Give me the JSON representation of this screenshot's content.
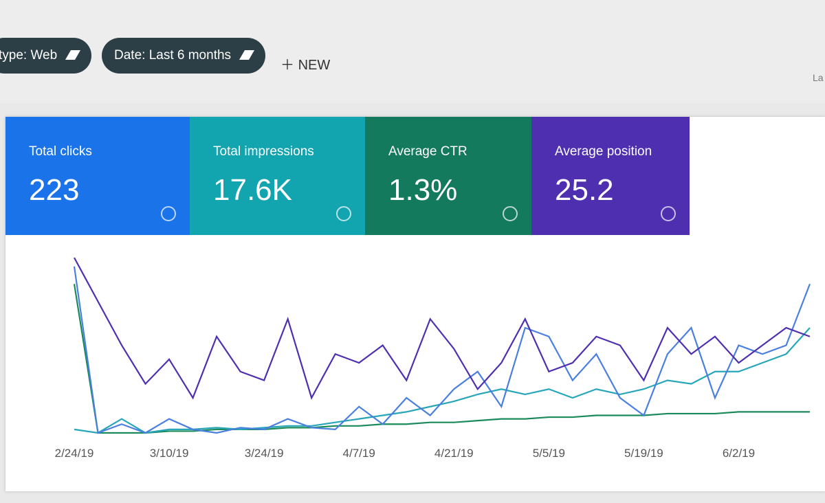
{
  "toolbar": {
    "chips": [
      "type: Web",
      "Date: Last 6 months"
    ],
    "new_button": "NEW",
    "corner_text": "La"
  },
  "cards": [
    {
      "label": "Total clicks",
      "value": "223",
      "color": "#1a73e8"
    },
    {
      "label": "Total impressions",
      "value": "17.6K",
      "color": "#12a4af"
    },
    {
      "label": "Average CTR",
      "value": "1.3%",
      "color": "#137a5e"
    },
    {
      "label": "Average position",
      "value": "25.2",
      "color": "#4e2fb0"
    }
  ],
  "chart_data": {
    "type": "line",
    "categories": [
      "2/24/19",
      null,
      null,
      null,
      "3/10/19",
      null,
      null,
      null,
      "3/24/19",
      null,
      null,
      null,
      "4/7/19",
      null,
      null,
      null,
      "4/21/19",
      null,
      null,
      null,
      "5/5/19",
      null,
      null,
      null,
      "5/19/19",
      null,
      null,
      null,
      "6/2/19",
      null,
      null,
      null
    ],
    "series": [
      {
        "name": "Average position",
        "color": "#4e2fb0",
        "values": [
          100,
          75,
          50,
          28,
          42,
          20,
          55,
          35,
          30,
          65,
          20,
          45,
          40,
          50,
          30,
          65,
          48,
          25,
          40,
          65,
          35,
          40,
          55,
          50,
          30,
          60,
          45,
          55,
          40,
          50,
          60,
          55
        ]
      },
      {
        "name": "Total clicks",
        "color": "#4a7fe0",
        "values": [
          95,
          0,
          5,
          0,
          8,
          2,
          0,
          3,
          2,
          8,
          3,
          2,
          15,
          5,
          20,
          10,
          25,
          35,
          15,
          60,
          55,
          30,
          45,
          20,
          10,
          45,
          60,
          20,
          50,
          45,
          50,
          85
        ]
      },
      {
        "name": "Average CTR",
        "color": "#26a6b8",
        "values": [
          2,
          0,
          8,
          0,
          2,
          2,
          3,
          2,
          3,
          4,
          4,
          6,
          8,
          10,
          12,
          15,
          18,
          22,
          25,
          22,
          25,
          20,
          25,
          22,
          25,
          30,
          28,
          35,
          35,
          40,
          45,
          60
        ]
      },
      {
        "name": "Total impressions",
        "color": "#1b8a5a",
        "values": [
          85,
          0,
          0,
          0,
          1,
          1,
          2,
          2,
          2,
          3,
          3,
          4,
          4,
          5,
          5,
          6,
          6,
          7,
          8,
          8,
          9,
          9,
          10,
          10,
          10,
          11,
          11,
          11,
          12,
          12,
          12,
          12
        ]
      }
    ]
  }
}
